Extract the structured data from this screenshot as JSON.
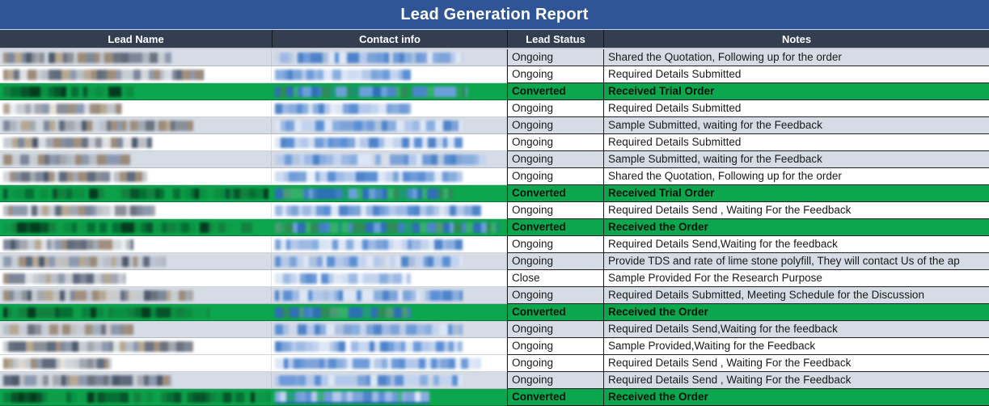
{
  "title": "Lead Generation Report",
  "header": {
    "columns": [
      "Lead Name",
      "Contact info",
      "Lead Status",
      "Notes"
    ]
  },
  "colors": {
    "title_bg": "#2F5597",
    "title_text": "#FFFFFF",
    "header_bg": "#333F50",
    "header_text": "#FFFFFF",
    "row_alt_bg": "#D6DCE5",
    "row_white_bg": "#FFFFFF",
    "row_green_bg": "#0CA64F",
    "grid_dark": "#1F1F1F",
    "link_underline": "#1F5BBF"
  },
  "palettes": {
    "name": [
      "#8a8f98",
      "#6b7280",
      "#a3a7b0",
      "#b9bec7",
      "#7d8799",
      "#9b8b7a",
      "#5f6b7d",
      "#c7cbd2",
      "#8d99ae",
      "#a08f80",
      "#4e5a6b",
      "#b5a893"
    ],
    "contact": [
      "#7da3d8",
      "#5b8fd4",
      "#9db9e4",
      "#c2d3ee",
      "#6f9bd9",
      "#88aede",
      "#b3c8ea",
      "#4f83c9",
      "#dce6f5"
    ],
    "green_name": [
      "#056f33",
      "#0a8f41",
      "#07542a",
      "#0e9c48",
      "#033d1d",
      "#12813f"
    ],
    "green_contact": [
      "#3f7fc0",
      "#2f6fb5",
      "#4c9a74",
      "#2e8b57",
      "#4a86c8",
      "#6aa0d8",
      "#35b06a"
    ]
  },
  "rows": [
    {
      "status": "Ongoing",
      "note": "Shared the Quotation, Following up for the order",
      "band": "alt",
      "name_w": 62,
      "contact_w": 80
    },
    {
      "status": "Ongoing",
      "note": "Required Details Submitted",
      "band": "white",
      "name_w": 74,
      "contact_w": 58
    },
    {
      "status": "Converted",
      "note": "Received Trial Order",
      "band": "green",
      "name_w": 48,
      "contact_w": 82
    },
    {
      "status": "Ongoing",
      "note": "Required Details Submitted",
      "band": "white",
      "name_w": 44,
      "contact_w": 58
    },
    {
      "status": "Ongoing",
      "note": "Sample Submitted, waiting for the Feedback",
      "band": "alt",
      "name_w": 70,
      "contact_w": 80
    },
    {
      "status": "Ongoing",
      "note": "Required Details Submitted",
      "band": "white",
      "name_w": 55,
      "contact_w": 80
    },
    {
      "status": "Ongoing",
      "note": "Sample Submitted, waiting for the Feedback",
      "band": "alt",
      "name_w": 47,
      "contact_w": 90
    },
    {
      "status": "Ongoing",
      "note": "Shared the Quotation, Following up for the order",
      "band": "white",
      "name_w": 53,
      "contact_w": 80
    },
    {
      "status": "Converted",
      "note": "Received Trial Order",
      "band": "green",
      "name_w": 98,
      "contact_w": 76
    },
    {
      "status": "Ongoing",
      "note": "Required Details Send , Waiting For the Feedback",
      "band": "white",
      "name_w": 56,
      "contact_w": 88
    },
    {
      "status": "Converted",
      "note": "Received the Order",
      "band": "green",
      "name_w": 92,
      "contact_w": 95
    },
    {
      "status": "Ongoing",
      "note": "Required Details Send,Waiting for the feedback",
      "band": "white",
      "name_w": 48,
      "contact_w": 80
    },
    {
      "status": "Ongoing",
      "note": "Provide TDS and rate of lime stone polyfill, They will contact Us of the ap",
      "band": "alt",
      "name_w": 60,
      "contact_w": 80
    },
    {
      "status": "Close",
      "note": "Sample Provided For the Research Purpose",
      "band": "white",
      "name_w": 45,
      "contact_w": 58
    },
    {
      "status": "Ongoing",
      "note": "Required Details Submitted, Meeting Schedule for the Discussion",
      "band": "alt",
      "name_w": 70,
      "contact_w": 80
    },
    {
      "status": "Converted",
      "note": "Received the Order",
      "band": "green",
      "name_w": 76,
      "contact_w": 58
    },
    {
      "status": "Ongoing",
      "note": "Required Details Send,Waiting for the feedback",
      "band": "alt",
      "name_w": 48,
      "contact_w": 80
    },
    {
      "status": "Ongoing",
      "note": "Sample Provided,Waiting for the Feedback",
      "band": "white",
      "name_w": 70,
      "contact_w": 80
    },
    {
      "status": "Ongoing",
      "note": "Required Details Send , Waiting For the Feedback",
      "band": "white",
      "name_w": 40,
      "contact_w": 88
    },
    {
      "status": "Ongoing",
      "note": "Required Details Send , Waiting For the Feedback",
      "band": "alt",
      "name_w": 62,
      "contact_w": 80
    },
    {
      "status": "Converted",
      "note": "Received the Order",
      "band": "green",
      "name_w": 100,
      "contact_w": 66,
      "contact_link": true
    }
  ]
}
